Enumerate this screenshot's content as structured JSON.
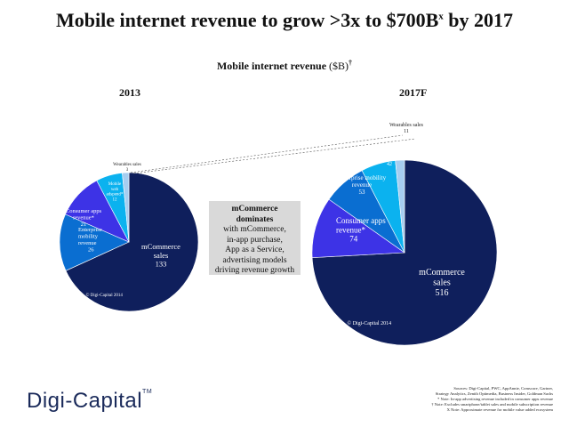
{
  "title": {
    "main": "Mobile internet revenue to grow >3x to $700B",
    "sup": "x",
    "tail": " by 2017"
  },
  "subtitle": {
    "main": "Mobile internet revenue",
    "unit": " ($B)",
    "sup": "†"
  },
  "callout": {
    "line1": "mCommerce",
    "line2": "dominates",
    "line3": "with mCommerce,",
    "line4": "in-app purchase,",
    "line5": "App as a Service,",
    "line6": "advertising models",
    "line7": "driving revenue growth"
  },
  "logo": {
    "name": "Digi-Capital",
    "tm": "TM"
  },
  "sources": [
    "Sources: Digi-Capital, PWC, AppAnnie, Comscore, Gartner,",
    "Strategy Analytics, Zenith Optimedia, Business Insider, Goldman Sachs",
    "* Note: In-app advertising revenue included in consumer apps revenue",
    "† Note: Excludes smartphone/tablet sales and mobile subscription revenue",
    "X Note: Approximate revenue for mobile value added ecosystem"
  ],
  "colors": {
    "navy": "#0f1f5c",
    "purple": "#3d33e6",
    "mid_blue": "#0a6ed1",
    "cyan": "#0bb2ef",
    "light_blue": "#a6cdf0"
  },
  "chart_data": [
    {
      "type": "pie",
      "title": "2013",
      "watermark": "© Digi-Capital 2014",
      "slices": [
        {
          "label": "mCommerce sales",
          "value": 133,
          "color": "#0f1f5c"
        },
        {
          "label": "Enterprise mobility revenue",
          "value": 26,
          "color": "#0a6ed1"
        },
        {
          "label": "Consumer apps revenue*",
          "value": 21,
          "color": "#3d33e6"
        },
        {
          "label": "Mobile web adspend*",
          "value": 12,
          "color": "#0bb2ef"
        },
        {
          "label": "Wearables sales",
          "value": 3,
          "color": "#a6cdf0"
        }
      ]
    },
    {
      "type": "pie",
      "title": "2017F",
      "watermark": "© Digi-Capital 2014",
      "slices": [
        {
          "label": "mCommerce sales",
          "value": 516,
          "color": "#0f1f5c"
        },
        {
          "label": "Consumer apps revenue*",
          "value": 74,
          "color": "#3d33e6"
        },
        {
          "label": "Enterprise mobility revenue",
          "value": 53,
          "color": "#0a6ed1"
        },
        {
          "label": "Mobile web adspend*",
          "value": 42,
          "color": "#0bb2ef"
        },
        {
          "label": "Wearables sales",
          "value": 11,
          "color": "#a6cdf0"
        }
      ]
    }
  ]
}
